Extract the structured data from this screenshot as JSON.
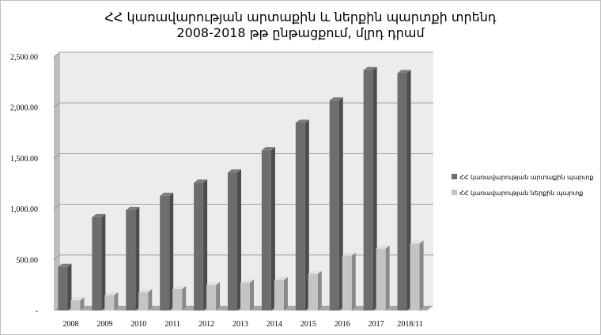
{
  "chart_data": {
    "type": "bar",
    "title": "ՀՀ կառավարության արտաքին և ներքին պարտքի տրենդ",
    "subtitle": "2008-2018 թթ ընթացքում, մլրդ դրամ",
    "categories": [
      "2008",
      "2009",
      "2010",
      "2011",
      "2012",
      "2013",
      "2014",
      "2015",
      "2016",
      "2017",
      "2018/11"
    ],
    "series": [
      {
        "name": "ՀՀ կառավարության արտաքին պարտք",
        "color": "#6d6d6d",
        "values": [
          430,
          920,
          990,
          1130,
          1260,
          1360,
          1580,
          1850,
          2070,
          2370,
          2340
        ]
      },
      {
        "name": "ՀՀ կառավարության ներքին պարտք",
        "color": "#c4c4c4",
        "values": [
          100,
          150,
          180,
          210,
          250,
          275,
          300,
          360,
          540,
          610,
          660
        ]
      }
    ],
    "ylim": [
      0,
      2500
    ],
    "yticks": [
      "-",
      "500.00",
      "1,000.00",
      "1,500.00",
      "2,000.00",
      "2,500.00"
    ],
    "grid": true,
    "legend_position": "right",
    "three_d": true
  }
}
